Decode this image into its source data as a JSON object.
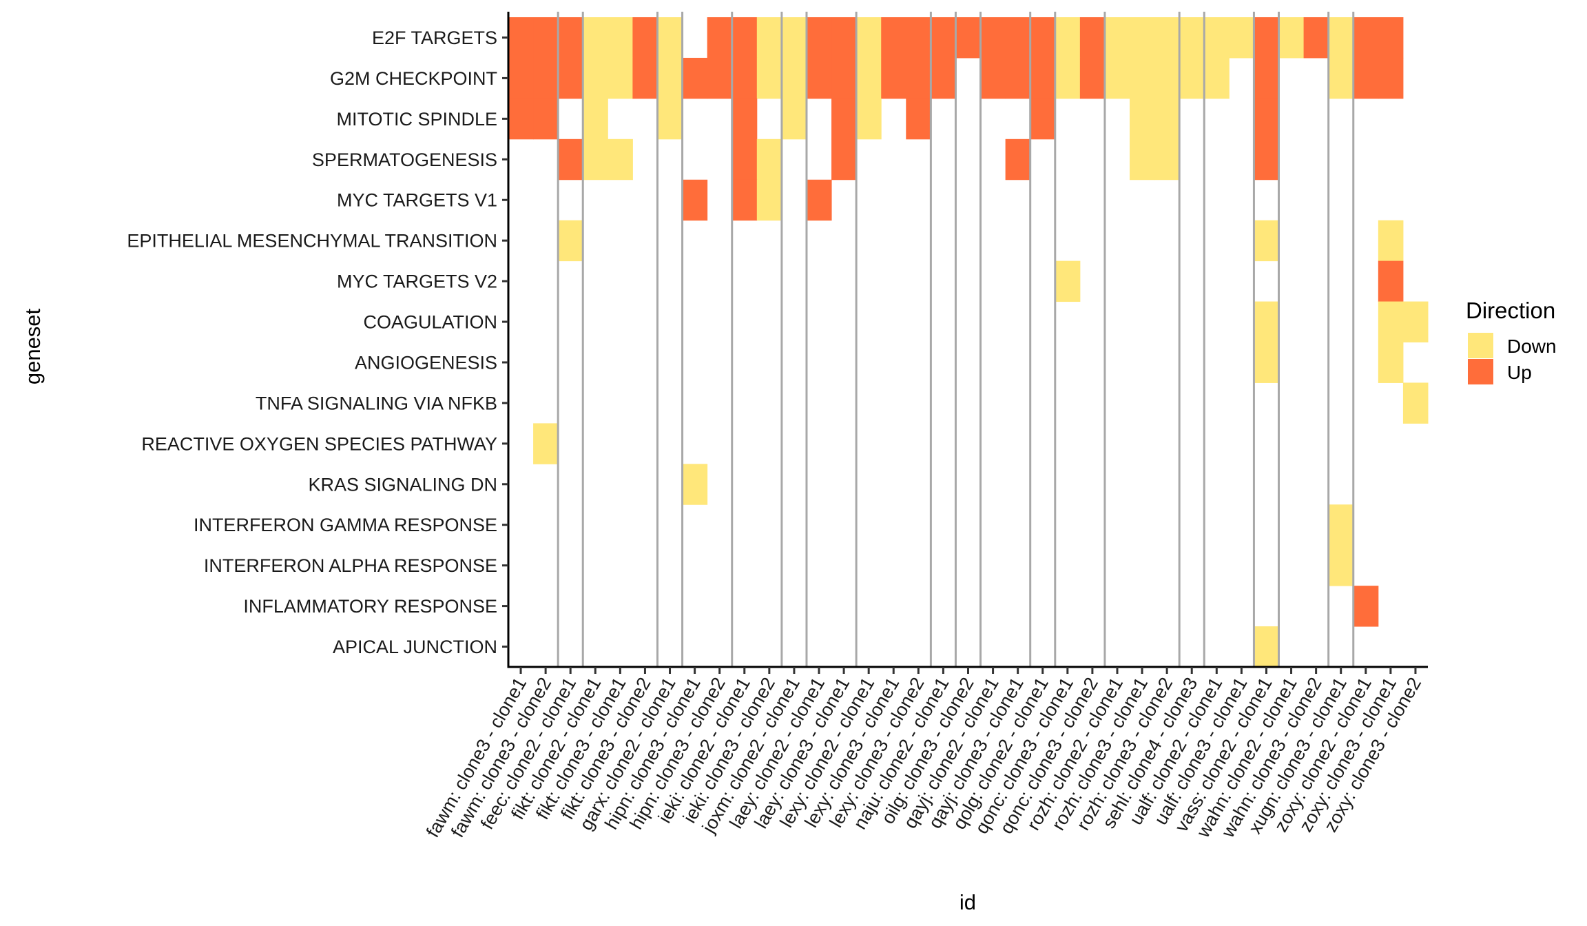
{
  "chart_data": {
    "type": "heatmap",
    "xlabel": "id",
    "ylabel": "geneset",
    "legend": {
      "title": "Direction",
      "placement": "right",
      "entries": [
        {
          "label": "Down",
          "color": "#FFE77A"
        },
        {
          "label": "Up",
          "color": "#FF6D3A"
        }
      ]
    },
    "separator_color": "#A8A8A8",
    "x": [
      "fawm: clone3 - clone1",
      "fawm: clone3 - clone2",
      "feec: clone2 - clone1",
      "fikt: clone2 - clone1",
      "fikt: clone3 - clone1",
      "fikt: clone3 - clone2",
      "garx: clone2 - clone1",
      "hipn: clone3 - clone1",
      "hipn: clone3 - clone2",
      "ieki: clone2 - clone1",
      "ieki: clone3 - clone2",
      "joxm: clone2 - clone1",
      "laey: clone2 - clone1",
      "laey: clone3 - clone1",
      "lexy: clone2 - clone1",
      "lexy: clone3 - clone1",
      "lexy: clone3 - clone2",
      "naju: clone2 - clone1",
      "oilg: clone3 - clone2",
      "qayj: clone2 - clone1",
      "qayj: clone3 - clone1",
      "qolg: clone2 - clone1",
      "qonc: clone3 - clone1",
      "qonc: clone3 - clone2",
      "rozh: clone2 - clone1",
      "rozh: clone3 - clone1",
      "rozh: clone3 - clone2",
      "sehl: clone4 - clone3",
      "ualf: clone2 - clone1",
      "ualf: clone3 - clone1",
      "vass: clone2 - clone1",
      "wahn: clone2 - clone1",
      "wahn: clone3 - clone2",
      "xugn: clone3 - clone1",
      "zoxy: clone2 - clone1",
      "zoxy: clone3 - clone1",
      "zoxy: clone3 - clone2"
    ],
    "y": [
      "E2F TARGETS",
      "G2M CHECKPOINT",
      "MITOTIC SPINDLE",
      "SPERMATOGENESIS",
      "MYC TARGETS V1",
      "EPITHELIAL MESENCHYMAL TRANSITION",
      "MYC TARGETS V2",
      "COAGULATION",
      "ANGIOGENESIS",
      "TNFA SIGNALING VIA NFKB",
      "REACTIVE OXYGEN SPECIES PATHWAY",
      "KRAS SIGNALING DN",
      "INTERFERON GAMMA RESPONSE",
      "INTERFERON ALPHA RESPONSE",
      "INFLAMMATORY RESPONSE",
      "APICAL JUNCTION"
    ],
    "values": [
      [
        "Up",
        "Up",
        "Up",
        "Down",
        "Down",
        "Up",
        "Down",
        null,
        "Up",
        "Up",
        "Down",
        "Down",
        "Up",
        "Up",
        "Down",
        "Up",
        "Up",
        "Up",
        "Up",
        "Up",
        "Up",
        "Up",
        "Down",
        "Up",
        "Down",
        "Down",
        "Down",
        "Down",
        "Down",
        "Down",
        "Up",
        "Down",
        "Up",
        "Down",
        "Up",
        "Up",
        null
      ],
      [
        "Up",
        "Up",
        "Up",
        "Down",
        "Down",
        "Up",
        "Down",
        "Up",
        "Up",
        "Up",
        "Down",
        "Down",
        "Up",
        "Up",
        "Down",
        "Up",
        "Up",
        "Up",
        null,
        "Up",
        "Up",
        "Up",
        "Down",
        "Up",
        "Down",
        "Down",
        "Down",
        "Down",
        "Down",
        null,
        "Up",
        null,
        null,
        "Down",
        "Up",
        "Up",
        null
      ],
      [
        "Up",
        "Up",
        null,
        "Down",
        null,
        null,
        "Down",
        null,
        null,
        "Up",
        null,
        "Down",
        null,
        "Up",
        "Down",
        null,
        "Up",
        null,
        null,
        null,
        null,
        "Up",
        null,
        null,
        null,
        "Down",
        "Down",
        null,
        null,
        null,
        "Up",
        null,
        null,
        null,
        null,
        null,
        null
      ],
      [
        null,
        null,
        "Up",
        "Down",
        "Down",
        null,
        null,
        null,
        null,
        "Up",
        "Down",
        null,
        null,
        "Up",
        null,
        null,
        null,
        null,
        null,
        null,
        "Up",
        null,
        null,
        null,
        null,
        "Down",
        "Down",
        null,
        null,
        null,
        "Up",
        null,
        null,
        null,
        null,
        null,
        null
      ],
      [
        null,
        null,
        null,
        null,
        null,
        null,
        null,
        "Up",
        null,
        "Up",
        "Down",
        null,
        "Up",
        null,
        null,
        null,
        null,
        null,
        null,
        null,
        null,
        null,
        null,
        null,
        null,
        null,
        null,
        null,
        null,
        null,
        null,
        null,
        null,
        null,
        null,
        null,
        null
      ],
      [
        null,
        null,
        "Down",
        null,
        null,
        null,
        null,
        null,
        null,
        null,
        null,
        null,
        null,
        null,
        null,
        null,
        null,
        null,
        null,
        null,
        null,
        null,
        null,
        null,
        null,
        null,
        null,
        null,
        null,
        null,
        "Down",
        null,
        null,
        null,
        null,
        "Down",
        null
      ],
      [
        null,
        null,
        null,
        null,
        null,
        null,
        null,
        null,
        null,
        null,
        null,
        null,
        null,
        null,
        null,
        null,
        null,
        null,
        null,
        null,
        null,
        null,
        "Down",
        null,
        null,
        null,
        null,
        null,
        null,
        null,
        null,
        null,
        null,
        null,
        null,
        "Up",
        null
      ],
      [
        null,
        null,
        null,
        null,
        null,
        null,
        null,
        null,
        null,
        null,
        null,
        null,
        null,
        null,
        null,
        null,
        null,
        null,
        null,
        null,
        null,
        null,
        null,
        null,
        null,
        null,
        null,
        null,
        null,
        null,
        "Down",
        null,
        null,
        null,
        null,
        "Down",
        "Down"
      ],
      [
        null,
        null,
        null,
        null,
        null,
        null,
        null,
        null,
        null,
        null,
        null,
        null,
        null,
        null,
        null,
        null,
        null,
        null,
        null,
        null,
        null,
        null,
        null,
        null,
        null,
        null,
        null,
        null,
        null,
        null,
        "Down",
        null,
        null,
        null,
        null,
        "Down",
        null
      ],
      [
        null,
        null,
        null,
        null,
        null,
        null,
        null,
        null,
        null,
        null,
        null,
        null,
        null,
        null,
        null,
        null,
        null,
        null,
        null,
        null,
        null,
        null,
        null,
        null,
        null,
        null,
        null,
        null,
        null,
        null,
        null,
        null,
        null,
        null,
        null,
        null,
        "Down"
      ],
      [
        null,
        "Down",
        null,
        null,
        null,
        null,
        null,
        null,
        null,
        null,
        null,
        null,
        null,
        null,
        null,
        null,
        null,
        null,
        null,
        null,
        null,
        null,
        null,
        null,
        null,
        null,
        null,
        null,
        null,
        null,
        null,
        null,
        null,
        null,
        null,
        null,
        null
      ],
      [
        null,
        null,
        null,
        null,
        null,
        null,
        null,
        "Down",
        null,
        null,
        null,
        null,
        null,
        null,
        null,
        null,
        null,
        null,
        null,
        null,
        null,
        null,
        null,
        null,
        null,
        null,
        null,
        null,
        null,
        null,
        null,
        null,
        null,
        null,
        null,
        null,
        null
      ],
      [
        null,
        null,
        null,
        null,
        null,
        null,
        null,
        null,
        null,
        null,
        null,
        null,
        null,
        null,
        null,
        null,
        null,
        null,
        null,
        null,
        null,
        null,
        null,
        null,
        null,
        null,
        null,
        null,
        null,
        null,
        null,
        null,
        null,
        "Down",
        null,
        null,
        null
      ],
      [
        null,
        null,
        null,
        null,
        null,
        null,
        null,
        null,
        null,
        null,
        null,
        null,
        null,
        null,
        null,
        null,
        null,
        null,
        null,
        null,
        null,
        null,
        null,
        null,
        null,
        null,
        null,
        null,
        null,
        null,
        null,
        null,
        null,
        "Down",
        null,
        null,
        null
      ],
      [
        null,
        null,
        null,
        null,
        null,
        null,
        null,
        null,
        null,
        null,
        null,
        null,
        null,
        null,
        null,
        null,
        null,
        null,
        null,
        null,
        null,
        null,
        null,
        null,
        null,
        null,
        null,
        null,
        null,
        null,
        null,
        null,
        null,
        null,
        "Up",
        null,
        null
      ],
      [
        null,
        null,
        null,
        null,
        null,
        null,
        null,
        null,
        null,
        null,
        null,
        null,
        null,
        null,
        null,
        null,
        null,
        null,
        null,
        null,
        null,
        null,
        null,
        null,
        null,
        null,
        null,
        null,
        null,
        null,
        "Down",
        null,
        null,
        null,
        null,
        null,
        null
      ]
    ]
  }
}
